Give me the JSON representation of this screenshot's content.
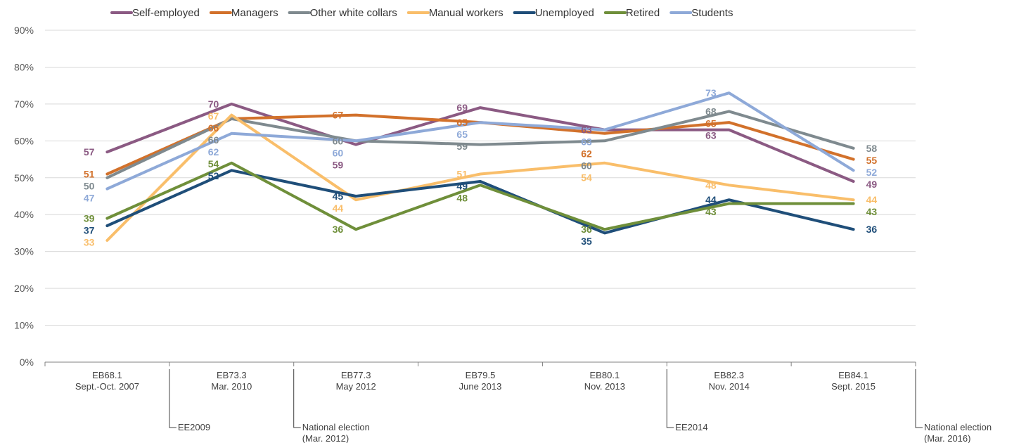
{
  "chart_data": {
    "type": "line",
    "categories": [
      [
        "EB68.1",
        "Sept.-Oct. 2007"
      ],
      [
        "EB73.3",
        "Mar. 2010"
      ],
      [
        "EB77.3",
        "May 2012"
      ],
      [
        "EB79.5",
        "June 2013"
      ],
      [
        "EB80.1",
        "Nov. 2013"
      ],
      [
        "EB82.3",
        "Nov. 2014"
      ],
      [
        "EB84.1",
        "Sept. 2015"
      ]
    ],
    "yticks": [
      "0%",
      "10%",
      "20%",
      "30%",
      "40%",
      "50%",
      "60%",
      "70%",
      "80%",
      "90%"
    ],
    "ylim": [
      0,
      90
    ],
    "grid": true,
    "legend_position": "top",
    "series": [
      {
        "name": "Self-employed",
        "color": "#8B5A83",
        "values": [
          57,
          70,
          59,
          69,
          63,
          63,
          49
        ]
      },
      {
        "name": "Managers",
        "color": "#D2712B",
        "values": [
          51,
          66,
          67,
          65,
          62,
          65,
          55
        ]
      },
      {
        "name": "Other white collars",
        "color": "#7F8A8F",
        "values": [
          50,
          66,
          60,
          59,
          60,
          68,
          58
        ]
      },
      {
        "name": "Manual workers",
        "color": "#F9BE6A",
        "values": [
          33,
          67,
          44,
          51,
          54,
          48,
          44
        ]
      },
      {
        "name": "Unemployed",
        "color": "#1F4E79",
        "values": [
          37,
          52,
          45,
          49,
          35,
          44,
          36
        ]
      },
      {
        "name": "Retired",
        "color": "#6F8F3A",
        "values": [
          39,
          54,
          36,
          48,
          36,
          43,
          43
        ]
      },
      {
        "name": "Students",
        "color": "#8EA9D8",
        "values": [
          47,
          62,
          60,
          65,
          63,
          73,
          52
        ]
      }
    ],
    "events": [
      {
        "label": [
          "EE2009"
        ],
        "position": 0.5
      },
      {
        "label": [
          "National election",
          "(Mar. 2012)"
        ],
        "position": 1.5
      },
      {
        "label": [
          "EE2014"
        ],
        "position": 4.5
      },
      {
        "label": [
          "National election",
          "(Mar. 2016)"
        ],
        "position": 6.5
      }
    ]
  }
}
